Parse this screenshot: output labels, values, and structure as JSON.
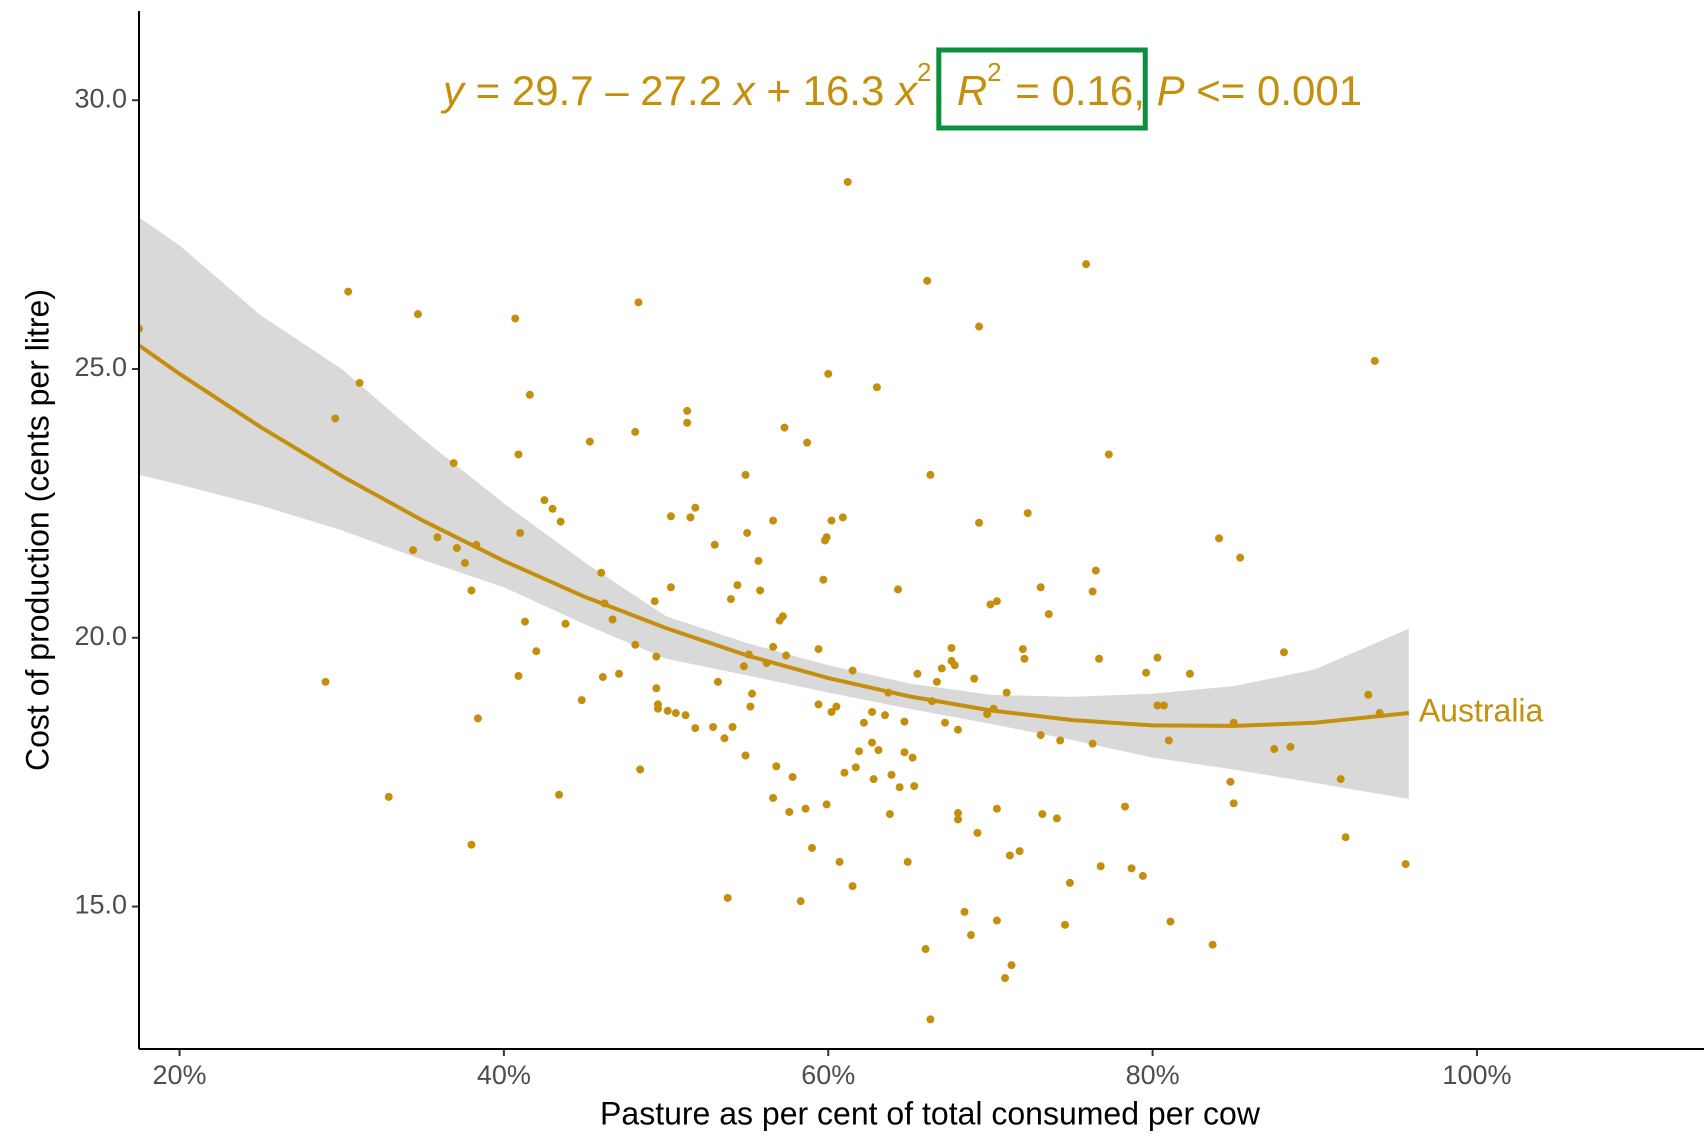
{
  "chart_data": {
    "type": "scatter",
    "annotation": [
      {
        "text": "y",
        "italic": true
      },
      {
        "text": " = 29.7 – 27.2 "
      },
      {
        "text": "x",
        "italic": true
      },
      {
        "text": " + 16.3 "
      },
      {
        "text": "x",
        "italic": true
      },
      {
        "text": "2",
        "sup": true
      },
      {
        "text": ", "
      },
      {
        "text": "R",
        "italic": true,
        "highlight": true
      },
      {
        "text": "2",
        "sup": true,
        "highlight": true
      },
      {
        "text": " = 0.16",
        "highlight": true
      },
      {
        "text": ", "
      },
      {
        "text": "P",
        "italic": true
      },
      {
        "text": " <= 0.001"
      }
    ],
    "highlight_color": "#0a8f3c",
    "x_label": "Pasture as per cent of total consumed per cow",
    "y_label": "Cost of production (cents per litre)",
    "xlim": [
      0.175,
      1.14
    ],
    "ylim": [
      12.35,
      31.66
    ],
    "xticks": [
      {
        "value": 0.2,
        "label": "20%"
      },
      {
        "value": 0.4,
        "label": "40%"
      },
      {
        "value": 0.6,
        "label": "60%"
      },
      {
        "value": 0.8,
        "label": "80%"
      },
      {
        "value": 1.0,
        "label": "100%"
      }
    ],
    "yticks": [
      {
        "value": 15,
        "label": "15.0"
      },
      {
        "value": 20,
        "label": "20.0"
      },
      {
        "value": 25,
        "label": "25.0"
      },
      {
        "value": 30,
        "label": "30.0"
      }
    ],
    "grid": false,
    "points": {
      "color": "#c48f0d",
      "x": [
        0.175,
        0.29,
        0.296,
        0.304,
        0.311,
        0.329,
        0.344,
        0.347,
        0.359,
        0.369,
        0.371,
        0.376,
        0.38,
        0.38,
        0.383,
        0.384,
        0.407,
        0.409,
        0.409,
        0.41,
        0.413,
        0.416,
        0.42,
        0.425,
        0.43,
        0.434,
        0.435,
        0.438,
        0.448,
        0.453,
        0.46,
        0.461,
        0.462,
        0.467,
        0.471,
        0.481,
        0.481,
        0.483,
        0.484,
        0.493,
        0.494,
        0.494,
        0.495,
        0.495,
        0.501,
        0.503,
        0.503,
        0.506,
        0.512,
        0.513,
        0.513,
        0.515,
        0.518,
        0.518,
        0.529,
        0.53,
        0.532,
        0.536,
        0.538,
        0.54,
        0.541,
        0.544,
        0.548,
        0.549,
        0.549,
        0.55,
        0.551,
        0.552,
        0.553,
        0.557,
        0.558,
        0.562,
        0.566,
        0.566,
        0.566,
        0.568,
        0.57,
        0.572,
        0.573,
        0.574,
        0.576,
        0.578,
        0.583,
        0.586,
        0.587,
        0.59,
        0.594,
        0.594,
        0.597,
        0.598,
        0.599,
        0.599,
        0.6,
        0.602,
        0.602,
        0.605,
        0.607,
        0.609,
        0.61,
        0.612,
        0.615,
        0.615,
        0.617,
        0.619,
        0.622,
        0.627,
        0.627,
        0.628,
        0.63,
        0.631,
        0.635,
        0.637,
        0.638,
        0.639,
        0.643,
        0.644,
        0.647,
        0.647,
        0.649,
        0.652,
        0.653,
        0.655,
        0.66,
        0.661,
        0.663,
        0.663,
        0.664,
        0.667,
        0.67,
        0.672,
        0.676,
        0.676,
        0.678,
        0.68,
        0.68,
        0.68,
        0.684,
        0.688,
        0.69,
        0.692,
        0.693,
        0.693,
        0.698,
        0.7,
        0.702,
        0.704,
        0.704,
        0.704,
        0.709,
        0.71,
        0.712,
        0.713,
        0.718,
        0.72,
        0.721,
        0.723,
        0.731,
        0.731,
        0.732,
        0.736,
        0.741,
        0.743,
        0.746,
        0.749,
        0.759,
        0.763,
        0.763,
        0.765,
        0.767,
        0.768,
        0.773,
        0.783,
        0.787,
        0.794,
        0.796,
        0.803,
        0.803,
        0.807,
        0.81,
        0.811,
        0.823,
        0.837,
        0.841,
        0.848,
        0.85,
        0.85,
        0.854,
        0.875,
        0.881,
        0.885,
        0.916,
        0.919,
        0.933,
        0.937,
        0.94,
        0.956
      ],
      "values": [
        25.75,
        19.18,
        24.08,
        26.44,
        24.74,
        17.04,
        21.63,
        26.02,
        21.87,
        23.25,
        21.67,
        21.39,
        16.15,
        20.88,
        21.73,
        18.5,
        25.94,
        23.41,
        19.29,
        21.95,
        20.3,
        24.52,
        19.75,
        22.56,
        22.4,
        17.08,
        22.16,
        20.26,
        18.84,
        23.65,
        21.21,
        19.27,
        20.64,
        20.34,
        19.33,
        23.83,
        19.87,
        26.24,
        17.55,
        20.68,
        19.65,
        19.06,
        18.76,
        18.68,
        18.64,
        20.94,
        22.26,
        18.6,
        18.56,
        24.22,
        24.0,
        22.24,
        22.42,
        18.32,
        18.34,
        21.73,
        19.18,
        18.13,
        15.16,
        20.72,
        18.34,
        20.98,
        19.47,
        23.03,
        17.81,
        21.95,
        19.69,
        18.72,
        18.96,
        21.43,
        20.88,
        19.53,
        22.18,
        19.83,
        17.02,
        17.61,
        20.32,
        20.4,
        23.91,
        19.67,
        16.76,
        17.41,
        15.1,
        16.82,
        23.63,
        16.09,
        19.79,
        18.76,
        21.08,
        21.81,
        21.87,
        16.9,
        24.91,
        22.18,
        18.62,
        18.72,
        15.83,
        22.24,
        17.49,
        28.48,
        15.38,
        19.39,
        17.59,
        17.89,
        18.42,
        18.05,
        18.62,
        17.37,
        24.66,
        17.91,
        18.56,
        18.98,
        16.72,
        17.45,
        20.9,
        17.22,
        17.87,
        18.44,
        15.83,
        17.77,
        17.24,
        19.33,
        14.21,
        26.64,
        23.03,
        12.9,
        18.82,
        19.18,
        19.43,
        18.42,
        19.81,
        19.57,
        19.49,
        16.62,
        16.74,
        18.29,
        14.9,
        14.47,
        19.24,
        16.37,
        25.79,
        22.14,
        18.58,
        20.62,
        18.68,
        20.68,
        14.74,
        16.82,
        13.67,
        18.98,
        15.95,
        13.91,
        16.03,
        19.79,
        19.61,
        22.32,
        20.94,
        18.19,
        16.72,
        20.44,
        16.64,
        18.09,
        14.66,
        15.44,
        26.95,
        18.03,
        20.86,
        21.25,
        19.61,
        15.75,
        23.41,
        16.86,
        15.71,
        15.57,
        19.35,
        19.63,
        18.74,
        18.74,
        18.09,
        14.72,
        19.33,
        14.29,
        21.85,
        17.32,
        18.42,
        16.92,
        21.49,
        17.93,
        19.73,
        17.97,
        17.37,
        16.29,
        18.94,
        25.15,
        18.6,
        15.79
      ]
    },
    "fit": {
      "name": "Australia",
      "color": "#c48f0d",
      "band_color": "#d9d9d9",
      "x": [
        0.175,
        0.2,
        0.25,
        0.3,
        0.35,
        0.4,
        0.45,
        0.5,
        0.55,
        0.6,
        0.65,
        0.7,
        0.75,
        0.8,
        0.85,
        0.9,
        0.958
      ],
      "values": [
        25.44,
        24.91,
        23.92,
        23.01,
        22.18,
        21.43,
        20.76,
        20.18,
        19.67,
        19.25,
        18.91,
        18.65,
        18.47,
        18.37,
        18.36,
        18.42,
        18.6
      ],
      "upper": [
        27.82,
        27.3,
        26.0,
        25.0,
        23.7,
        22.5,
        21.4,
        20.4,
        19.9,
        19.49,
        19.15,
        18.94,
        18.9,
        18.96,
        19.1,
        19.41,
        20.17
      ],
      "lower": [
        23.03,
        22.85,
        22.46,
        22.0,
        21.45,
        20.94,
        20.25,
        19.61,
        19.3,
        18.98,
        18.68,
        18.4,
        18.1,
        17.77,
        17.55,
        17.3,
        17.0
      ]
    }
  }
}
